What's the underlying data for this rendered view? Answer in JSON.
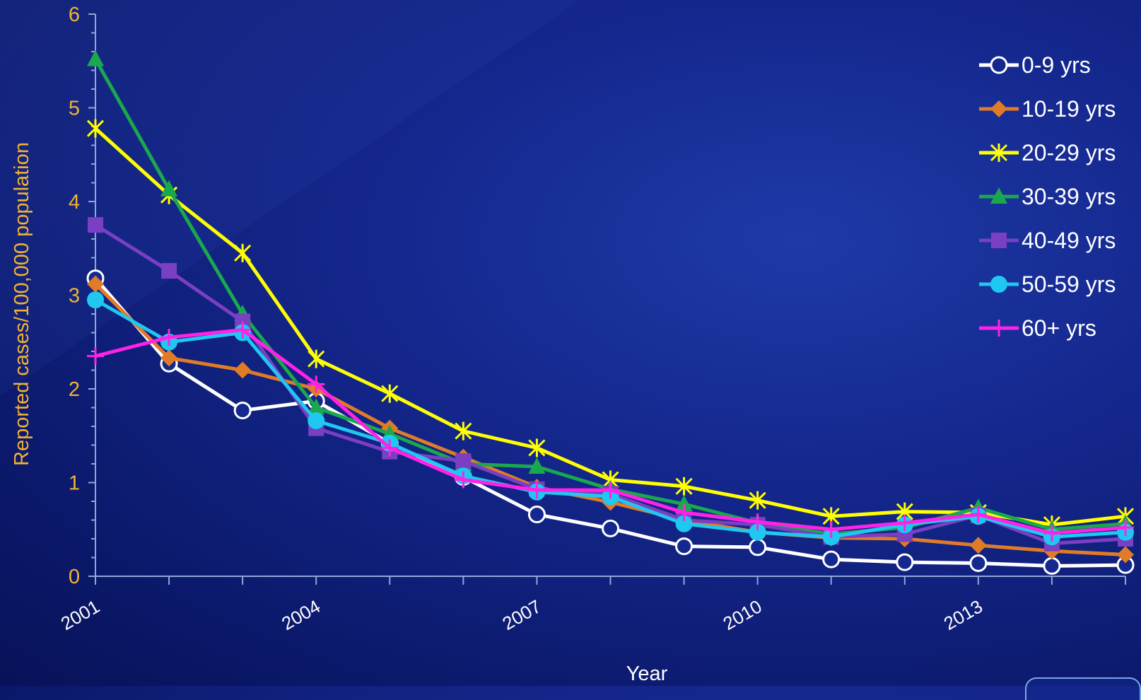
{
  "chart_data": {
    "type": "line",
    "title": "",
    "xlabel": "Year",
    "ylabel": "Reported cases/100,000 population",
    "ylim": [
      0,
      6
    ],
    "yticks": [
      0,
      1,
      2,
      3,
      4,
      5,
      6
    ],
    "xlim": [
      2001,
      2015
    ],
    "xtick_labels": [
      "2001",
      "2004",
      "2007",
      "2010",
      "2013"
    ],
    "xtick_values": [
      2001,
      2004,
      2007,
      2010,
      2013
    ],
    "x": [
      2001,
      2002,
      2003,
      2004,
      2005,
      2006,
      2007,
      2008,
      2009,
      2010,
      2011,
      2012,
      2013,
      2014,
      2015
    ],
    "grid": false,
    "legend_position": "top-right",
    "series": [
      {
        "name": "0-9 yrs",
        "color": "#ffffff",
        "marker": "open-circle",
        "values": [
          3.18,
          2.27,
          1.77,
          1.87,
          1.42,
          1.06,
          0.66,
          0.51,
          0.32,
          0.31,
          0.18,
          0.15,
          0.14,
          0.11,
          0.12
        ]
      },
      {
        "name": "10-19 yrs",
        "color": "#e07b28",
        "marker": "diamond",
        "values": [
          3.12,
          2.33,
          2.2,
          2.0,
          1.58,
          1.27,
          0.95,
          0.79,
          0.6,
          0.47,
          0.41,
          0.4,
          0.33,
          0.27,
          0.23
        ]
      },
      {
        "name": "20-29 yrs",
        "color": "#ffff00",
        "marker": "star",
        "values": [
          4.78,
          4.07,
          3.45,
          2.32,
          1.95,
          1.55,
          1.37,
          1.03,
          0.96,
          0.81,
          0.64,
          0.69,
          0.68,
          0.55,
          0.64
        ]
      },
      {
        "name": "30-39 yrs",
        "color": "#1aa84e",
        "marker": "triangle",
        "values": [
          5.52,
          4.13,
          2.8,
          1.8,
          1.52,
          1.2,
          1.17,
          0.93,
          0.77,
          0.57,
          0.45,
          0.52,
          0.73,
          0.5,
          0.56
        ]
      },
      {
        "name": "40-49 yrs",
        "color": "#7a3fc2",
        "marker": "square",
        "values": [
          3.75,
          3.26,
          2.72,
          1.58,
          1.33,
          1.23,
          0.93,
          0.88,
          0.6,
          0.55,
          0.42,
          0.45,
          0.65,
          0.35,
          0.4
        ]
      },
      {
        "name": "50-59 yrs",
        "color": "#1ec8f0",
        "marker": "circle",
        "values": [
          2.95,
          2.5,
          2.6,
          1.66,
          1.42,
          1.07,
          0.9,
          0.85,
          0.56,
          0.47,
          0.42,
          0.55,
          0.64,
          0.42,
          0.47
        ]
      },
      {
        "name": "60+ yrs",
        "color": "#ff22e6",
        "marker": "plus",
        "values": [
          2.35,
          2.55,
          2.63,
          2.05,
          1.37,
          1.03,
          0.92,
          0.92,
          0.68,
          0.58,
          0.5,
          0.57,
          0.66,
          0.46,
          0.52
        ]
      }
    ]
  }
}
